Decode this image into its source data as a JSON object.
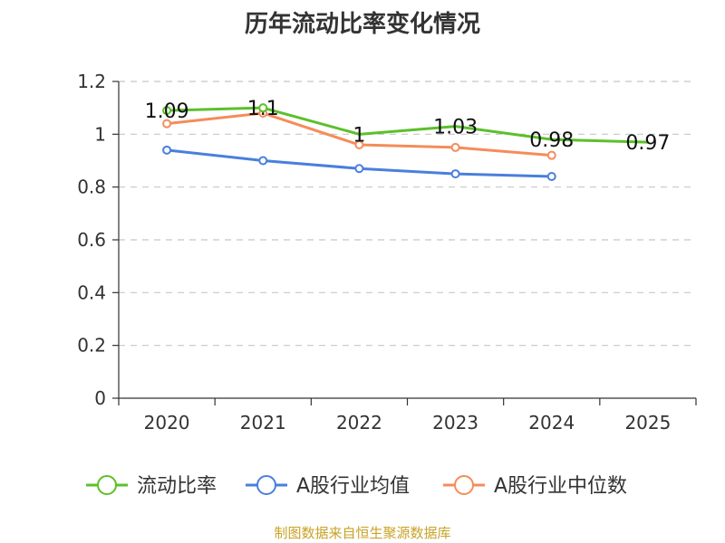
{
  "chart_data": {
    "type": "line",
    "title": "历年流动比率变化情况",
    "categories": [
      "2020",
      "2021",
      "2022",
      "2023",
      "2024",
      "2025"
    ],
    "ylim": [
      0,
      1.2
    ],
    "yticks": [
      "0",
      "0.2",
      "0.4",
      "0.6",
      "0.8",
      "1",
      "1.2"
    ],
    "ytick_values": [
      0,
      0.2,
      0.4,
      0.6,
      0.8,
      1.0,
      1.2
    ],
    "grid": true,
    "legend_position": "bottom",
    "series": [
      {
        "name": "流动比率",
        "color": "#5cc02b",
        "values": [
          1.09,
          1.1,
          1.0,
          1.03,
          0.98,
          0.97
        ],
        "labels": [
          "1.09",
          "1.1",
          "1",
          "1.03",
          "0.98",
          "0.97"
        ],
        "markers": [
          true,
          true,
          false,
          false,
          false,
          false
        ]
      },
      {
        "name": "A股行业均值",
        "color": "#4a7fdc",
        "values": [
          0.94,
          0.9,
          0.87,
          0.85,
          0.84,
          null
        ],
        "markers": [
          true,
          true,
          true,
          true,
          true,
          false
        ]
      },
      {
        "name": "A股行业中位数",
        "color": "#f58c5a",
        "values": [
          1.04,
          1.08,
          0.96,
          0.95,
          0.92,
          null
        ],
        "markers": [
          true,
          true,
          true,
          true,
          true,
          false
        ]
      }
    ]
  },
  "source_note": "制图数据来自恒生聚源数据库"
}
